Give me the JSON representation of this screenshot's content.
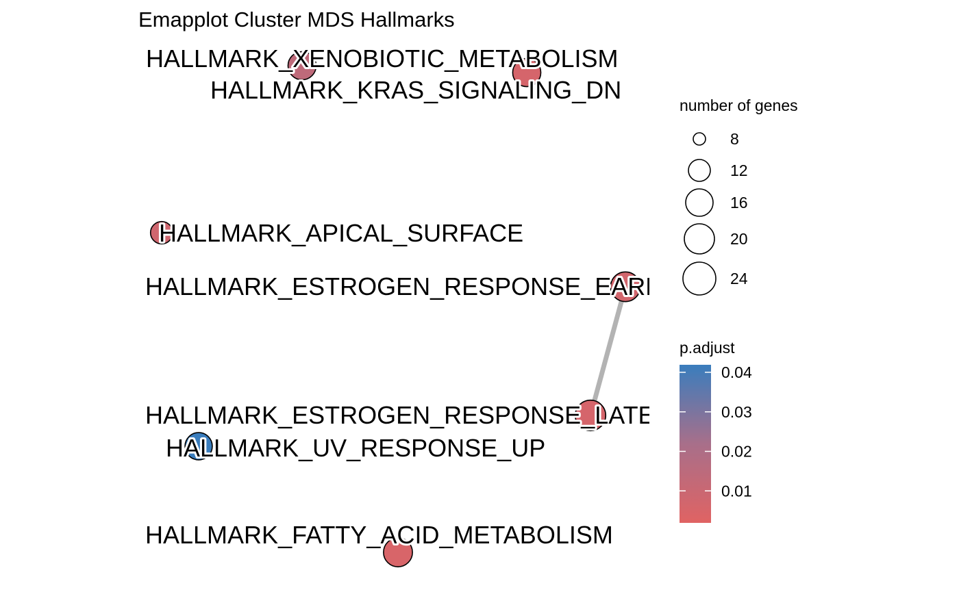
{
  "chart_data": {
    "type": "network",
    "title": "Emapplot Cluster MDS Hallmarks",
    "nodes": [
      {
        "id": "xeno",
        "label": "HALLMARK_XENOBIOTIC_METABOLISM",
        "genes": 12,
        "p_adjust": 0.012
      },
      {
        "id": "kras",
        "label": "HALLMARK_KRAS_SIGNALING_DN",
        "genes": 12,
        "p_adjust": 0.004
      },
      {
        "id": "apical",
        "label": "HALLMARK_APICAL_SURFACE",
        "genes": 6,
        "p_adjust": 0.006
      },
      {
        "id": "estE",
        "label": "HALLMARK_ESTROGEN_RESPONSE_EARLY",
        "genes": 14,
        "p_adjust": 0.005
      },
      {
        "id": "estL",
        "label": "HALLMARK_ESTROGEN_RESPONSE_LATE",
        "genes": 15,
        "p_adjust": 0.004
      },
      {
        "id": "uv",
        "label": "HALLMARK_UV_RESPONSE_UP",
        "genes": 11,
        "p_adjust": 0.04
      },
      {
        "id": "fatty",
        "label": "HALLMARK_FATTY_ACID_METABOLISM",
        "genes": 13,
        "p_adjust": 0.003
      }
    ],
    "edges": [
      {
        "from": "estE",
        "to": "estL"
      }
    ],
    "size_legend": {
      "title": "number of genes",
      "values": [
        8,
        12,
        16,
        20,
        24
      ],
      "labels": [
        "8",
        "12",
        "16",
        "20",
        "24"
      ]
    },
    "color_legend": {
      "title": "p.adjust",
      "low_color": "#e06363",
      "mid_color": "#a86f8a",
      "high_color": "#3a7dbd",
      "min": 0.0,
      "max": 0.04,
      "ticks": [
        0.01,
        0.02,
        0.03,
        0.04
      ],
      "tick_labels": [
        "0.01",
        "0.02",
        "0.03",
        "0.04"
      ]
    }
  }
}
